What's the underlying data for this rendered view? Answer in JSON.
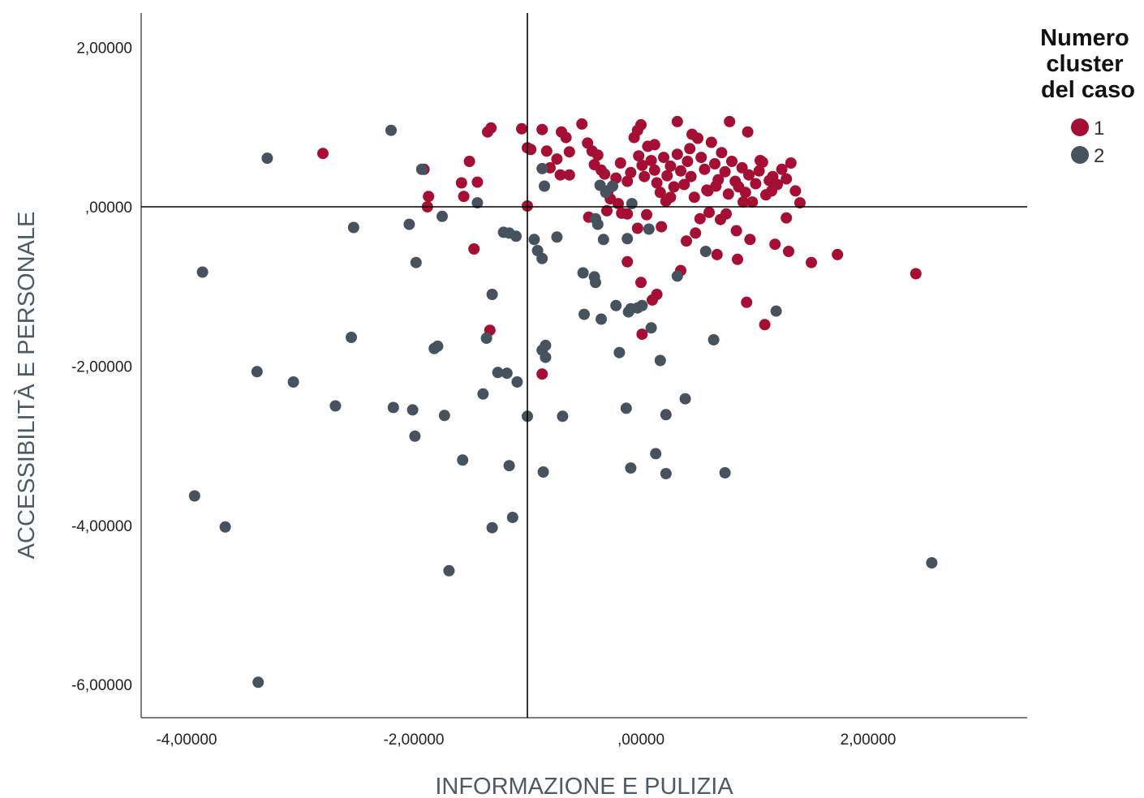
{
  "chart_data": {
    "type": "scatter",
    "title": "",
    "xlabel": "INFORMAZIONE E PULIZIA",
    "ylabel": "ACCESSIBILITÀ E PERSONALE",
    "xlim": [
      -4.4,
      3.4
    ],
    "ylim": [
      -6.4,
      2.4
    ],
    "xticks": [
      -4,
      -2,
      0,
      2
    ],
    "yticks": [
      2,
      0,
      -2,
      -4,
      -6
    ],
    "xtick_labels": [
      "-4,00000",
      "-2,00000",
      ",00000",
      "2,00000"
    ],
    "ytick_labels": [
      "2,00000",
      ",00000",
      "-2,00000",
      "-4,00000",
      "-6,00000"
    ],
    "reference_lines": {
      "x": -1.0,
      "y": 0.0
    },
    "grid": false,
    "legend": {
      "title": "Numero cluster del caso",
      "position": "top-right"
    },
    "series": [
      {
        "name": "1",
        "color": "#a50f34",
        "points": [
          [
            -2.8,
            0.67
          ],
          [
            -1.91,
            0.47
          ],
          [
            -1.87,
            0.13
          ],
          [
            -1.88,
            0.0
          ],
          [
            -1.58,
            0.3
          ],
          [
            -1.56,
            0.13
          ],
          [
            -1.51,
            0.57
          ],
          [
            -1.44,
            0.31
          ],
          [
            -1.47,
            -0.53
          ],
          [
            -1.35,
            0.94
          ],
          [
            -1.32,
            0.99
          ],
          [
            -1.33,
            -1.55
          ],
          [
            -1.05,
            0.98
          ],
          [
            -1.0,
            0.74
          ],
          [
            -0.97,
            0.72
          ],
          [
            -0.87,
            0.97
          ],
          [
            -0.83,
            0.7
          ],
          [
            -0.8,
            0.49
          ],
          [
            -0.74,
            0.6
          ],
          [
            -0.7,
            0.94
          ],
          [
            -0.66,
            0.87
          ],
          [
            -0.71,
            0.4
          ],
          [
            -0.63,
            0.69
          ],
          [
            -0.52,
            1.04
          ],
          [
            -0.47,
            0.8
          ],
          [
            -0.43,
            0.7
          ],
          [
            -0.41,
            0.53
          ],
          [
            -0.38,
            0.65
          ],
          [
            -0.35,
            0.46
          ],
          [
            -0.32,
            0.41
          ],
          [
            -0.29,
            0.2
          ],
          [
            -0.27,
            0.1
          ],
          [
            -0.3,
            -0.05
          ],
          [
            -0.2,
            0.04
          ],
          [
            -0.17,
            -0.08
          ],
          [
            -0.12,
            0.32
          ],
          [
            -0.09,
            0.43
          ],
          [
            -0.06,
            0.87
          ],
          [
            -0.03,
            0.96
          ],
          [
            0.0,
            1.03
          ],
          [
            -0.02,
            0.64
          ],
          [
            0.01,
            0.52
          ],
          [
            0.03,
            0.38
          ],
          [
            0.06,
            0.76
          ],
          [
            0.09,
            0.58
          ],
          [
            0.12,
            0.46
          ],
          [
            0.14,
            0.3
          ],
          [
            0.17,
            0.18
          ],
          [
            0.2,
            0.62
          ],
          [
            0.23,
            0.39
          ],
          [
            0.26,
            0.51
          ],
          [
            0.29,
            0.25
          ],
          [
            0.32,
            0.66
          ],
          [
            0.35,
            0.45
          ],
          [
            0.38,
            0.28
          ],
          [
            0.41,
            0.57
          ],
          [
            0.44,
            0.38
          ],
          [
            0.47,
            0.12
          ],
          [
            0.5,
            0.86
          ],
          [
            0.53,
            0.62
          ],
          [
            0.56,
            0.47
          ],
          [
            0.59,
            0.2
          ],
          [
            0.62,
            0.81
          ],
          [
            0.65,
            0.54
          ],
          [
            0.68,
            0.34
          ],
          [
            0.71,
            0.68
          ],
          [
            0.74,
            0.44
          ],
          [
            0.77,
            0.16
          ],
          [
            0.8,
            0.57
          ],
          [
            0.83,
            0.32
          ],
          [
            0.86,
            0.25
          ],
          [
            0.89,
            0.49
          ],
          [
            0.92,
            0.18
          ],
          [
            0.95,
            0.4
          ],
          [
            0.98,
            0.06
          ],
          [
            1.01,
            0.29
          ],
          [
            1.04,
            0.45
          ],
          [
            1.07,
            0.56
          ],
          [
            1.1,
            0.15
          ],
          [
            1.13,
            0.33
          ],
          [
            1.16,
            0.38
          ],
          [
            1.2,
            0.28
          ],
          [
            1.24,
            0.47
          ],
          [
            1.28,
            0.35
          ],
          [
            1.32,
            0.55
          ],
          [
            1.36,
            0.2
          ],
          [
            1.4,
            0.05
          ],
          [
            0.32,
            1.07
          ],
          [
            0.78,
            1.07
          ],
          [
            0.94,
            0.94
          ],
          [
            0.45,
            0.91
          ],
          [
            0.6,
            -0.07
          ],
          [
            0.7,
            -0.16
          ],
          [
            0.84,
            -0.3
          ],
          [
            0.96,
            -0.41
          ],
          [
            0.67,
            -0.6
          ],
          [
            0.4,
            -0.43
          ],
          [
            0.48,
            -0.33
          ],
          [
            0.35,
            -0.8
          ],
          [
            0.85,
            -0.66
          ],
          [
            0.93,
            -1.2
          ],
          [
            1.09,
            -1.48
          ],
          [
            1.18,
            -0.47
          ],
          [
            1.28,
            -0.14
          ],
          [
            1.3,
            -0.56
          ],
          [
            1.5,
            -0.7
          ],
          [
            1.73,
            -0.6
          ],
          [
            2.42,
            -0.84
          ],
          [
            0.14,
            -1.1
          ],
          [
            0.1,
            -1.17
          ],
          [
            0.0,
            -0.95
          ],
          [
            0.01,
            -1.6
          ],
          [
            -0.12,
            -0.69
          ],
          [
            -0.03,
            -0.27
          ],
          [
            0.05,
            -0.1
          ],
          [
            0.18,
            -0.25
          ],
          [
            0.26,
            0.12
          ],
          [
            -0.63,
            0.4
          ],
          [
            -0.87,
            -2.1
          ],
          [
            -1.0,
            0.01
          ],
          [
            0.12,
            0.78
          ],
          [
            0.22,
            0.07
          ],
          [
            0.58,
            0.21
          ],
          [
            0.75,
            -0.09
          ],
          [
            0.9,
            0.06
          ],
          [
            1.05,
            0.58
          ],
          [
            1.15,
            0.2
          ],
          [
            0.52,
            -0.15
          ],
          [
            0.43,
            0.73
          ],
          [
            0.66,
            0.26
          ],
          [
            -0.18,
            0.55
          ],
          [
            -0.22,
            0.36
          ],
          [
            -0.46,
            -0.13
          ],
          [
            -0.12,
            -0.09
          ]
        ]
      },
      {
        "name": "2",
        "color": "#46535e",
        "points": [
          [
            -3.29,
            0.61
          ],
          [
            -2.2,
            0.96
          ],
          [
            -1.93,
            0.47
          ],
          [
            -2.04,
            -0.22
          ],
          [
            -1.98,
            -0.7
          ],
          [
            -1.75,
            -0.12
          ],
          [
            -1.44,
            0.05
          ],
          [
            -2.53,
            -0.26
          ],
          [
            -3.86,
            -0.82
          ],
          [
            -3.38,
            -2.07
          ],
          [
            -3.06,
            -2.2
          ],
          [
            -2.69,
            -2.5
          ],
          [
            -2.55,
            -1.64
          ],
          [
            -2.18,
            -2.52
          ],
          [
            -2.01,
            -2.55
          ],
          [
            -1.99,
            -2.88
          ],
          [
            -1.82,
            -1.78
          ],
          [
            -1.79,
            -1.75
          ],
          [
            -1.73,
            -2.62
          ],
          [
            -1.57,
            -3.18
          ],
          [
            -1.39,
            -2.35
          ],
          [
            -1.36,
            -1.65
          ],
          [
            -1.31,
            -1.1
          ],
          [
            -1.26,
            -2.08
          ],
          [
            -1.18,
            -2.09
          ],
          [
            -1.16,
            -3.25
          ],
          [
            -1.09,
            -2.2
          ],
          [
            -1.0,
            -2.63
          ],
          [
            -0.87,
            -1.8
          ],
          [
            -0.84,
            -1.74
          ],
          [
            -0.84,
            -1.89
          ],
          [
            -0.86,
            -3.33
          ],
          [
            -0.69,
            -2.63
          ],
          [
            -0.87,
            -0.65
          ],
          [
            -0.91,
            -0.55
          ],
          [
            -0.74,
            -0.38
          ],
          [
            -0.87,
            0.48
          ],
          [
            -0.85,
            0.26
          ],
          [
            -1.16,
            -0.33
          ],
          [
            -1.21,
            -0.32
          ],
          [
            -1.1,
            -0.37
          ],
          [
            -0.94,
            -0.41
          ],
          [
            -0.51,
            -0.83
          ],
          [
            -0.41,
            -0.88
          ],
          [
            -0.4,
            -0.95
          ],
          [
            -0.5,
            -1.35
          ],
          [
            -0.35,
            -1.41
          ],
          [
            -0.22,
            -1.24
          ],
          [
            -0.19,
            -1.83
          ],
          [
            -0.11,
            -1.32
          ],
          [
            -0.09,
            -1.28
          ],
          [
            -0.03,
            -1.27
          ],
          [
            0.01,
            -1.24
          ],
          [
            0.09,
            -1.52
          ],
          [
            0.17,
            -1.93
          ],
          [
            0.22,
            -2.61
          ],
          [
            0.13,
            -3.1
          ],
          [
            0.22,
            -3.35
          ],
          [
            0.39,
            -2.41
          ],
          [
            -0.13,
            -2.53
          ],
          [
            -0.09,
            -3.28
          ],
          [
            0.74,
            -3.34
          ],
          [
            1.19,
            -1.31
          ],
          [
            0.64,
            -1.67
          ],
          [
            0.32,
            -0.87
          ],
          [
            0.57,
            -0.56
          ],
          [
            -0.12,
            -0.4
          ],
          [
            -0.33,
            -0.41
          ],
          [
            -0.38,
            -0.22
          ],
          [
            -0.4,
            -0.15
          ],
          [
            -0.36,
            0.27
          ],
          [
            -0.31,
            0.18
          ],
          [
            -0.25,
            0.26
          ],
          [
            -0.08,
            0.04
          ],
          [
            0.07,
            -0.28
          ],
          [
            2.56,
            -4.47
          ],
          [
            -3.93,
            -3.63
          ],
          [
            -3.66,
            -4.02
          ],
          [
            -3.37,
            -5.97
          ],
          [
            -1.69,
            -4.57
          ],
          [
            -1.31,
            -4.03
          ],
          [
            -1.13,
            -3.9
          ]
        ]
      }
    ]
  }
}
